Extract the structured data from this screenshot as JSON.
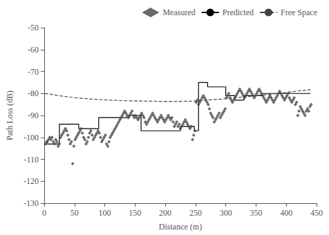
{
  "chart_data": {
    "type": "line",
    "xlabel": "Distance (m)",
    "ylabel": "Path Loss (dB)",
    "xlim": [
      0,
      450
    ],
    "ylim": [
      -130,
      -50
    ],
    "xticks": [
      0,
      50,
      100,
      150,
      200,
      250,
      300,
      350,
      400,
      450
    ],
    "yticks": [
      -130,
      -120,
      -110,
      -100,
      -90,
      -80,
      -70,
      -60,
      -50
    ],
    "grid": false,
    "legend": "upper right",
    "series": [
      {
        "name": "Measured",
        "type": "scatter",
        "marker": "diamond",
        "color": "#444444",
        "x": [
          2,
          4,
          5,
          7,
          9,
          11,
          13,
          15,
          17,
          19,
          21,
          23,
          25,
          27,
          29,
          31,
          33,
          35,
          37,
          39,
          41,
          43,
          45,
          47,
          49,
          51,
          53,
          55,
          57,
          59,
          61,
          63,
          65,
          67,
          69,
          71,
          73,
          75,
          77,
          79,
          81,
          83,
          85,
          87,
          89,
          91,
          93,
          95,
          97,
          99,
          101,
          103,
          105,
          107,
          109,
          111,
          113,
          115,
          117,
          119,
          121,
          123,
          125,
          127,
          129,
          131,
          133,
          135,
          137,
          139,
          141,
          143,
          145,
          147,
          149,
          151,
          153,
          155,
          157,
          159,
          161,
          163,
          165,
          167,
          169,
          171,
          173,
          175,
          177,
          179,
          181,
          183,
          185,
          187,
          189,
          191,
          193,
          195,
          197,
          199,
          201,
          203,
          205,
          207,
          209,
          211,
          213,
          215,
          217,
          219,
          221,
          223,
          225,
          227,
          229,
          231,
          233,
          235,
          237,
          239,
          241,
          243,
          245,
          247,
          249,
          251,
          253,
          255,
          257,
          259,
          261,
          263,
          265,
          267,
          269,
          271,
          273,
          275,
          277,
          279,
          281,
          283,
          285,
          287,
          289,
          291,
          293,
          295,
          297,
          299,
          301,
          303,
          305,
          307,
          309,
          311,
          313,
          315,
          317,
          319,
          321,
          323,
          325,
          327,
          329,
          331,
          333,
          335,
          337,
          339,
          341,
          343,
          345,
          347,
          349,
          351,
          353,
          355,
          357,
          359,
          361,
          363,
          365,
          367,
          369,
          371,
          373,
          375,
          377,
          379,
          381,
          383,
          385,
          387,
          389,
          391,
          393,
          395,
          397,
          399,
          401,
          403,
          405,
          407,
          409,
          411,
          413,
          415,
          417,
          419,
          421,
          423,
          425,
          427,
          429,
          431,
          433,
          435,
          437,
          439,
          441
        ],
        "values": [
          -103,
          -102,
          -102,
          -101,
          -100,
          -101,
          -100,
          -102,
          -103,
          -101,
          -102,
          -104,
          -103,
          -100,
          -99,
          -98,
          -97,
          -96,
          -97,
          -99,
          -101,
          -103,
          -102,
          -112,
          -104,
          -101,
          -100,
          -99,
          -98,
          -97,
          -96,
          -98,
          -100,
          -101,
          -103,
          -102,
          -100,
          -98,
          -97,
          -99,
          -101,
          -100,
          -99,
          -98,
          -97,
          -98,
          -100,
          -102,
          -101,
          -100,
          -99,
          -103,
          -104,
          -102,
          -100,
          -99,
          -98,
          -97,
          -96,
          -95,
          -94,
          -93,
          -92,
          -91,
          -90,
          -89,
          -88,
          -89,
          -90,
          -91,
          -90,
          -89,
          -88,
          -90,
          -91,
          -90,
          -91,
          -92,
          -91,
          -90,
          -89,
          -90,
          -91,
          -93,
          -94,
          -93,
          -92,
          -91,
          -90,
          -89,
          -90,
          -91,
          -92,
          -93,
          -92,
          -91,
          -90,
          -91,
          -92,
          -93,
          -92,
          -91,
          -90,
          -91,
          -92,
          -91,
          -93,
          -95,
          -94,
          -93,
          -95,
          -94,
          -96,
          -95,
          -94,
          -93,
          -92,
          -93,
          -94,
          -95,
          -96,
          -95,
          -101,
          -99,
          -97,
          -84,
          -83,
          -85,
          -84,
          -83,
          -82,
          -81,
          -82,
          -83,
          -84,
          -85,
          -87,
          -89,
          -90,
          -91,
          -93,
          -92,
          -91,
          -90,
          -89,
          -91,
          -90,
          -89,
          -88,
          -87,
          -82,
          -81,
          -80,
          -82,
          -83,
          -84,
          -83,
          -82,
          -81,
          -80,
          -79,
          -78,
          -79,
          -80,
          -81,
          -82,
          -81,
          -80,
          -79,
          -78,
          -79,
          -80,
          -81,
          -82,
          -81,
          -80,
          -79,
          -78,
          -79,
          -80,
          -81,
          -82,
          -83,
          -84,
          -83,
          -82,
          -81,
          -82,
          -83,
          -84,
          -83,
          -82,
          -81,
          -80,
          -79,
          -80,
          -81,
          -82,
          -83,
          -82,
          -81,
          -80,
          -82,
          -83,
          -84,
          -83,
          -82,
          -85,
          -84,
          -90,
          -88,
          -86,
          -87,
          -88,
          -89,
          -90,
          -88,
          -87,
          -88,
          -86,
          -85
        ]
      },
      {
        "name": "Predicted",
        "type": "line",
        "line_style": "solid",
        "color": "#000000",
        "x": [
          0,
          25,
          25,
          57,
          57,
          90,
          90,
          140,
          140,
          160,
          160,
          225,
          225,
          248,
          248,
          255,
          255,
          270,
          270,
          300,
          300,
          315,
          315,
          330,
          330,
          360,
          360,
          440
        ],
        "values": [
          -103,
          -103,
          -94,
          -94,
          -96,
          -96,
          -91,
          -91,
          -90,
          -90,
          -97,
          -97,
          -95,
          -95,
          -97,
          -97,
          -75,
          -75,
          -77,
          -77,
          -81,
          -81,
          -83,
          -83,
          -81,
          -81,
          -80,
          -80
        ]
      },
      {
        "name": "Free Space",
        "type": "line",
        "line_style": "dashed",
        "color": "#444444",
        "x": [
          1,
          10,
          20,
          30,
          40,
          50,
          75,
          100,
          125,
          150,
          175,
          200,
          220,
          240,
          250,
          260,
          275,
          300,
          325,
          350,
          375,
          400,
          425,
          440
        ],
        "values": [
          -80.0,
          -80.3,
          -80.8,
          -81.2,
          -81.6,
          -81.9,
          -82.5,
          -82.9,
          -83.2,
          -83.4,
          -83.5,
          -83.6,
          -83.6,
          -83.5,
          -83.4,
          -83.2,
          -82.9,
          -82.4,
          -81.7,
          -81.0,
          -80.3,
          -79.5,
          -78.7,
          -78.2
        ]
      }
    ]
  }
}
